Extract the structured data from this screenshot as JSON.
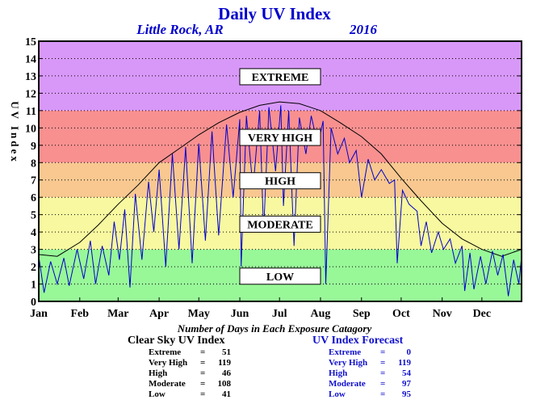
{
  "chart_data": {
    "type": "line",
    "title": "Daily UV Index",
    "location": "Little Rock, AR",
    "year": "2016",
    "ylabel": "UV Index",
    "ylim": [
      0,
      15
    ],
    "yticks": [
      0,
      1,
      2,
      3,
      4,
      5,
      6,
      7,
      8,
      9,
      10,
      11,
      12,
      13,
      14,
      15
    ],
    "xlim": [
      1,
      366
    ],
    "month_ticks": [
      {
        "label": "Jan",
        "day": 1
      },
      {
        "label": "Feb",
        "day": 32
      },
      {
        "label": "Mar",
        "day": 61
      },
      {
        "label": "Apr",
        "day": 92
      },
      {
        "label": "May",
        "day": 122
      },
      {
        "label": "Jun",
        "day": 153
      },
      {
        "label": "Jul",
        "day": 183
      },
      {
        "label": "Aug",
        "day": 214
      },
      {
        "label": "Sep",
        "day": 245
      },
      {
        "label": "Oct",
        "day": 275
      },
      {
        "label": "Nov",
        "day": 306
      },
      {
        "label": "Dec",
        "day": 336
      }
    ],
    "grid": "horizontal dotted",
    "bands": [
      {
        "label": "LOW",
        "from": 0,
        "to": 3,
        "color": "#98f898"
      },
      {
        "label": "MODERATE",
        "from": 3,
        "to": 6,
        "color": "#f8f8a0"
      },
      {
        "label": "HIGH",
        "from": 6,
        "to": 8,
        "color": "#f8c890"
      },
      {
        "label": "VERY HIGH",
        "from": 8,
        "to": 11,
        "color": "#f89090"
      },
      {
        "label": "EXTREME",
        "from": 11,
        "to": 15,
        "color": "#d898f8"
      }
    ],
    "series": [
      {
        "color": "#000000",
        "points": [
          [
            1,
            2.7
          ],
          [
            15,
            2.6
          ],
          [
            32,
            3.4
          ],
          [
            46,
            4.4
          ],
          [
            61,
            5.6
          ],
          [
            76,
            6.7
          ],
          [
            92,
            8.0
          ],
          [
            107,
            8.8
          ],
          [
            122,
            9.6
          ],
          [
            137,
            10.3
          ],
          [
            153,
            10.9
          ],
          [
            168,
            11.3
          ],
          [
            183,
            11.5
          ],
          [
            198,
            11.4
          ],
          [
            214,
            11.0
          ],
          [
            229,
            10.3
          ],
          [
            245,
            9.5
          ],
          [
            260,
            8.5
          ],
          [
            275,
            7.1
          ],
          [
            290,
            5.8
          ],
          [
            306,
            4.5
          ],
          [
            321,
            3.6
          ],
          [
            336,
            3.0
          ],
          [
            351,
            2.6
          ],
          [
            366,
            3.0
          ]
        ]
      },
      {
        "color": "#0000cc",
        "points": [
          [
            1,
            2.6
          ],
          [
            5,
            0.5
          ],
          [
            10,
            2.3
          ],
          [
            15,
            1.0
          ],
          [
            20,
            2.5
          ],
          [
            24,
            0.9
          ],
          [
            30,
            3.0
          ],
          [
            35,
            1.3
          ],
          [
            40,
            3.5
          ],
          [
            44,
            1.0
          ],
          [
            49,
            3.2
          ],
          [
            54,
            1.5
          ],
          [
            58,
            4.6
          ],
          [
            62,
            2.4
          ],
          [
            66,
            5.3
          ],
          [
            70,
            0.8
          ],
          [
            74,
            6.2
          ],
          [
            79,
            2.4
          ],
          [
            84,
            6.9
          ],
          [
            88,
            4.0
          ],
          [
            92,
            7.6
          ],
          [
            97,
            2.0
          ],
          [
            102,
            8.5
          ],
          [
            107,
            3.0
          ],
          [
            112,
            8.9
          ],
          [
            117,
            2.2
          ],
          [
            122,
            9.1
          ],
          [
            127,
            3.5
          ],
          [
            132,
            9.8
          ],
          [
            137,
            3.8
          ],
          [
            143,
            10.2
          ],
          [
            148,
            6.0
          ],
          [
            153,
            10.5
          ],
          [
            154,
            2.0
          ],
          [
            158,
            10.7
          ],
          [
            163,
            6.5
          ],
          [
            168,
            11.0
          ],
          [
            171,
            4.0
          ],
          [
            175,
            11.2
          ],
          [
            180,
            7.5
          ],
          [
            184,
            11.3
          ],
          [
            186,
            5.5
          ],
          [
            190,
            11.0
          ],
          [
            194,
            3.2
          ],
          [
            198,
            10.6
          ],
          [
            203,
            8.5
          ],
          [
            207,
            10.7
          ],
          [
            212,
            9.0
          ],
          [
            216,
            10.4
          ],
          [
            218,
            1.0
          ],
          [
            222,
            10.0
          ],
          [
            227,
            8.5
          ],
          [
            232,
            9.4
          ],
          [
            236,
            8.0
          ],
          [
            241,
            8.7
          ],
          [
            245,
            6.0
          ],
          [
            250,
            8.2
          ],
          [
            255,
            7.0
          ],
          [
            260,
            7.6
          ],
          [
            266,
            6.8
          ],
          [
            270,
            7.0
          ],
          [
            272,
            2.2
          ],
          [
            276,
            6.4
          ],
          [
            281,
            5.6
          ],
          [
            287,
            5.2
          ],
          [
            290,
            3.2
          ],
          [
            294,
            4.6
          ],
          [
            298,
            2.8
          ],
          [
            303,
            4.0
          ],
          [
            307,
            3.0
          ],
          [
            312,
            3.6
          ],
          [
            316,
            2.2
          ],
          [
            321,
            3.2
          ],
          [
            323,
            0.6
          ],
          [
            327,
            2.8
          ],
          [
            330,
            0.7
          ],
          [
            335,
            2.6
          ],
          [
            339,
            1.0
          ],
          [
            344,
            2.9
          ],
          [
            348,
            1.5
          ],
          [
            352,
            2.7
          ],
          [
            356,
            0.3
          ],
          [
            360,
            2.4
          ],
          [
            364,
            1.0
          ],
          [
            366,
            2.6
          ]
        ]
      }
    ],
    "subtitle": "Number of Days in Each Exposure Catagory",
    "tables": [
      {
        "name": "Clear Sky UV Index",
        "rows": [
          {
            "label": "Extreme",
            "sep": "=",
            "value": "51"
          },
          {
            "label": "Very High",
            "sep": "=",
            "value": "119"
          },
          {
            "label": "High",
            "sep": "=",
            "value": "46"
          },
          {
            "label": "Moderate",
            "sep": "=",
            "value": "108"
          },
          {
            "label": "Low",
            "sep": "=",
            "value": "41"
          }
        ]
      },
      {
        "name": "UV Index Forecast",
        "rows": [
          {
            "label": "Extreme",
            "sep": "=",
            "value": "0"
          },
          {
            "label": "Very High",
            "sep": "=",
            "value": "119"
          },
          {
            "label": "High",
            "sep": "=",
            "value": "54"
          },
          {
            "label": "Moderate",
            "sep": "=",
            "value": "97"
          },
          {
            "label": "Low",
            "sep": "=",
            "value": "95"
          }
        ]
      }
    ]
  }
}
